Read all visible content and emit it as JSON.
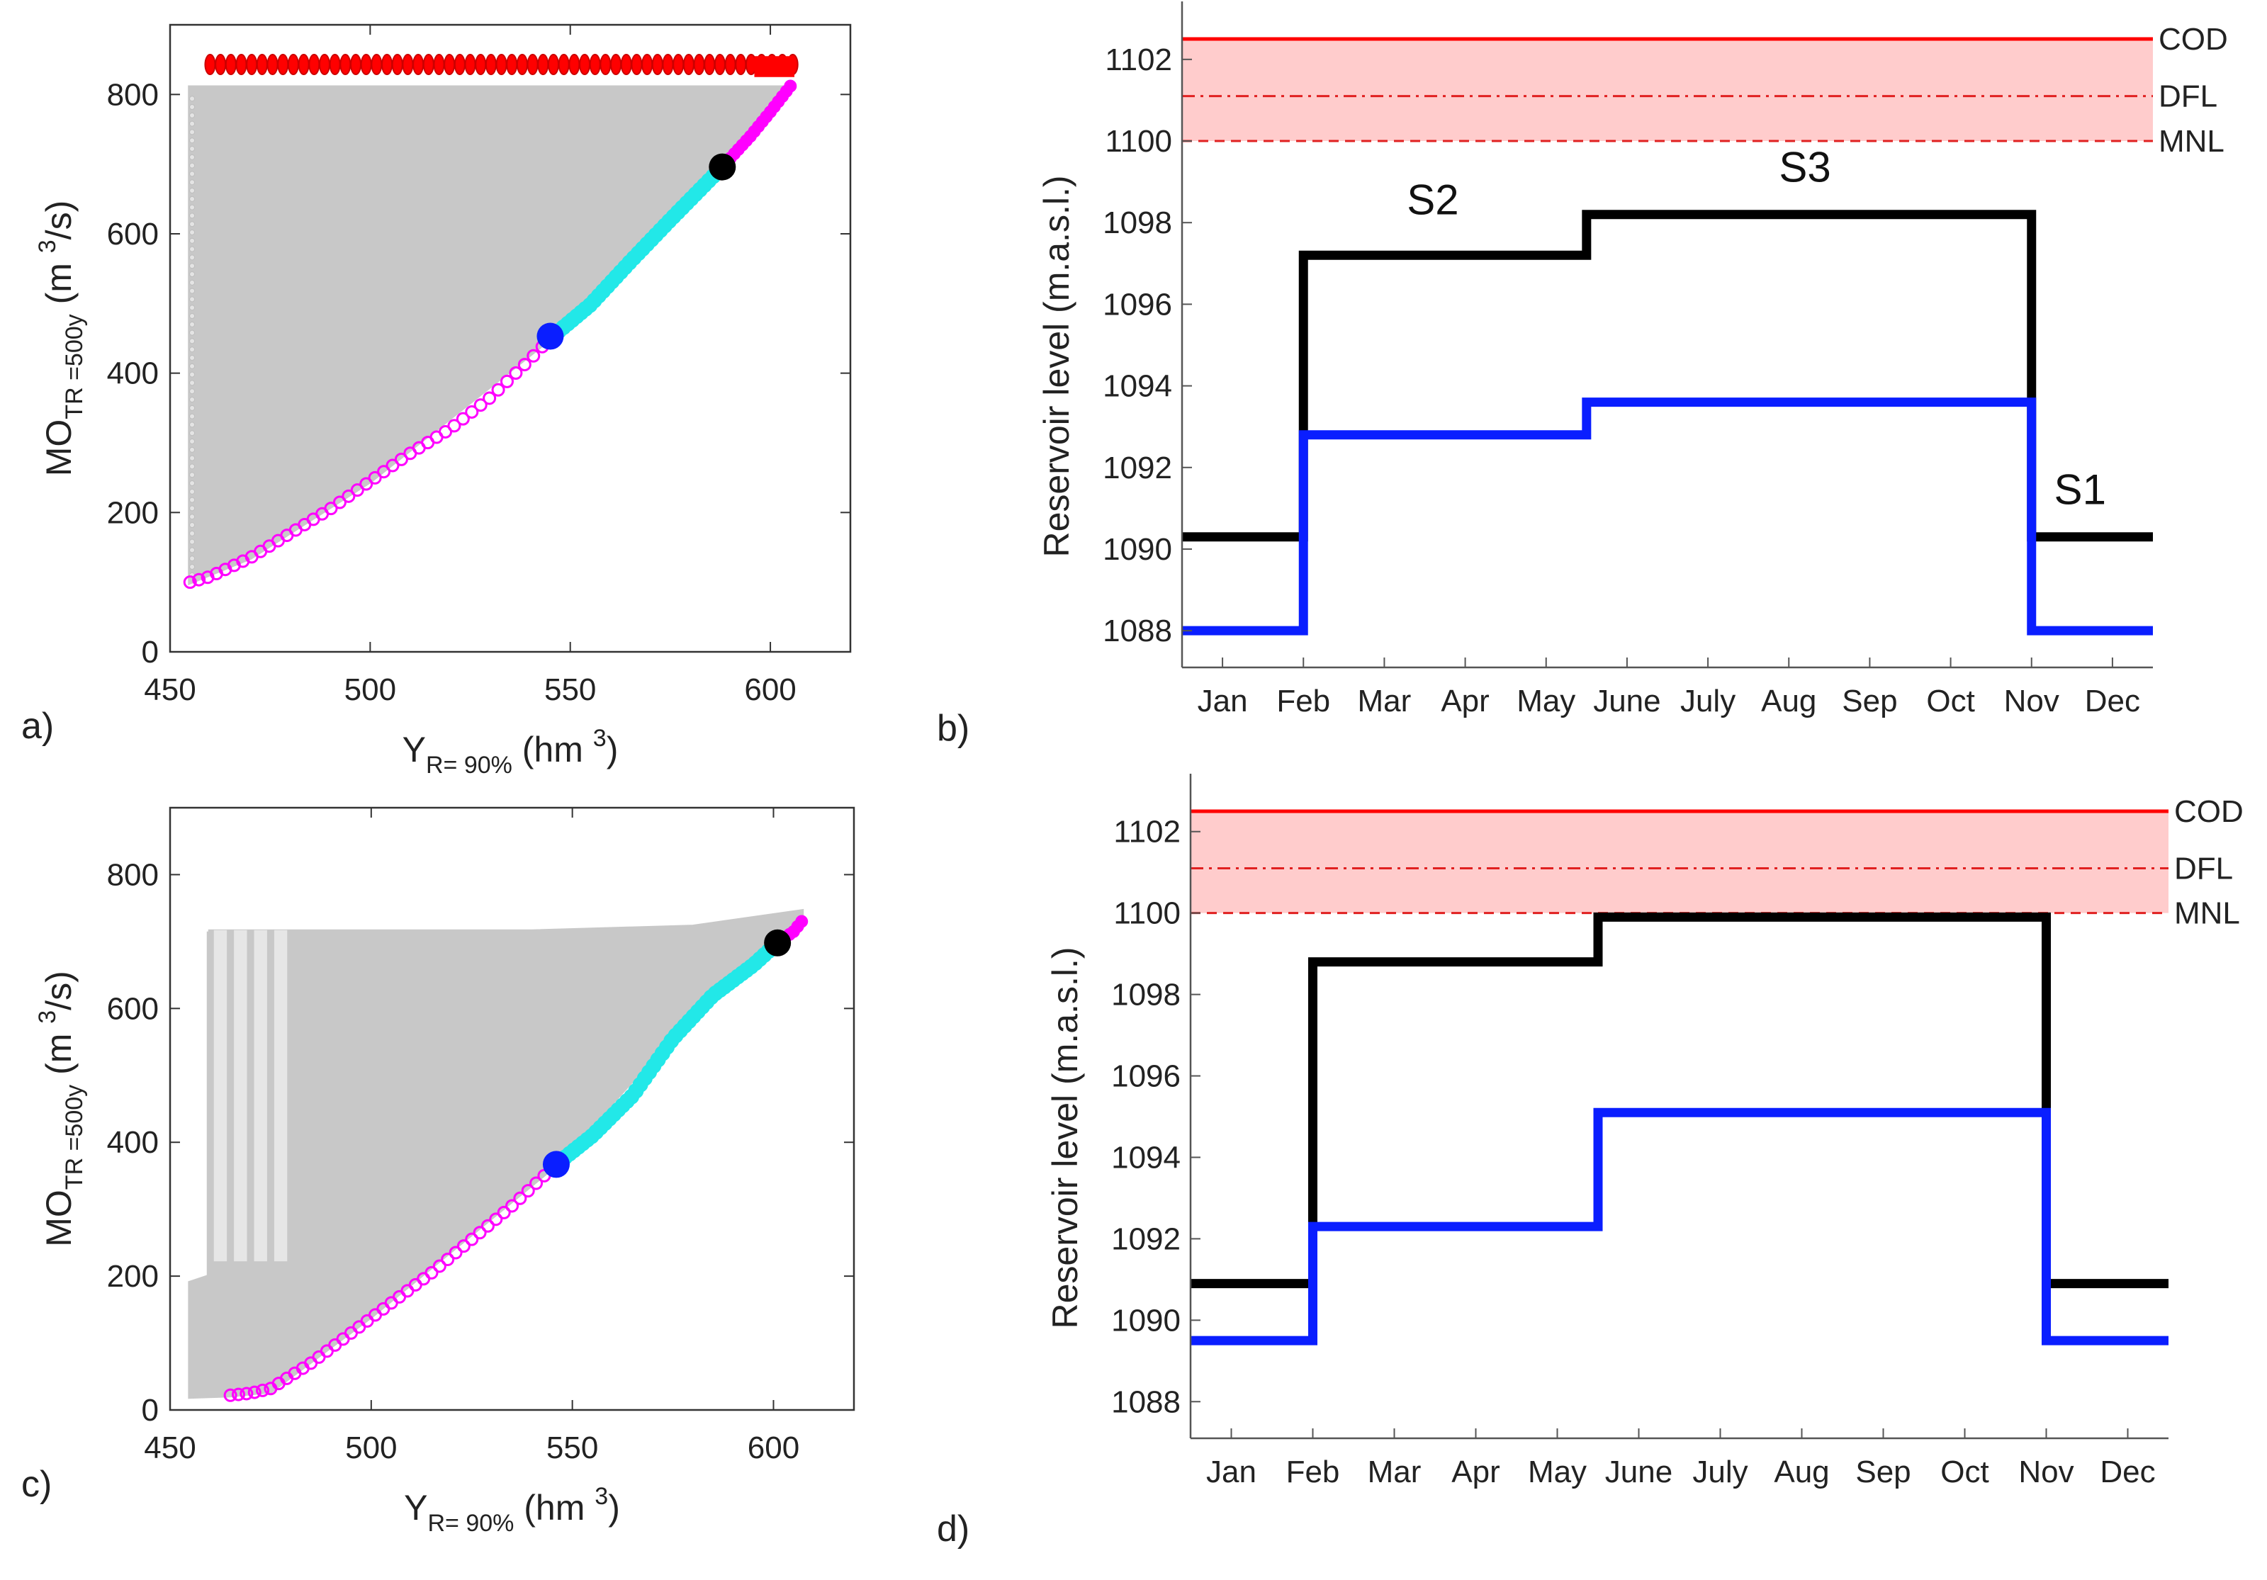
{
  "colors": {
    "grey": "#c8c8c8",
    "magenta": "#ff00ff",
    "cyan": "#22e8e8",
    "red": "#ff0000",
    "blue": "#0a1eff",
    "black": "#000000",
    "band": "#ffcccc",
    "bandLine": "#e02020"
  },
  "chart_data": [
    {
      "panel": "a)",
      "type": "scatter",
      "xlabel_main": "Y",
      "xlabel_sub": "R= 90%",
      "xlabel_unit_pre": "(hm",
      "xlabel_sup": "3",
      "xlabel_unit_post": ")",
      "ylabel_main": "MO",
      "ylabel_sub": "TR =500y",
      "ylabel_unit_pre": "(m",
      "ylabel_sup": "3",
      "ylabel_unit_post": "/s)",
      "xlim": [
        450,
        620
      ],
      "ylim": [
        0,
        900
      ],
      "xticks": [
        450,
        500,
        550,
        600
      ],
      "yticks": [
        0,
        200,
        400,
        600,
        800
      ],
      "grey_region": {
        "x": [
          455,
          605
        ],
        "y_top": 810,
        "lower_curve": [
          [
            455,
            100
          ],
          [
            470,
            135
          ],
          [
            500,
            245
          ],
          [
            545,
            450
          ],
          [
            588,
            696
          ],
          [
            605,
            810
          ]
        ]
      },
      "red_points": {
        "x_range": [
          460,
          606
        ],
        "y": 843
      },
      "magenta_lower": [
        [
          455,
          100
        ],
        [
          460,
          108
        ],
        [
          470,
          135
        ],
        [
          480,
          170
        ],
        [
          490,
          205
        ],
        [
          500,
          245
        ],
        [
          510,
          285
        ],
        [
          520,
          320
        ],
        [
          530,
          365
        ],
        [
          540,
          420
        ],
        [
          545,
          450
        ]
      ],
      "cyan": [
        [
          545,
          450
        ],
        [
          555,
          498
        ],
        [
          565,
          560
        ],
        [
          575,
          620
        ],
        [
          588,
          696
        ]
      ],
      "magenta_upper": [
        [
          588,
          696
        ],
        [
          595,
          740
        ],
        [
          600,
          775
        ],
        [
          605,
          812
        ]
      ],
      "blue_point": [
        545,
        453
      ],
      "black_point": [
        588,
        696
      ]
    },
    {
      "panel": "b)",
      "type": "line",
      "ylabel": "Reservoir level (m.a.s.l.)",
      "ylim": [
        1087.1,
        1102.9
      ],
      "yticks": [
        1088,
        1090,
        1092,
        1094,
        1096,
        1098,
        1100,
        1102
      ],
      "months": [
        "Jan",
        "Feb",
        "Mar",
        "Apr",
        "May",
        "June",
        "July",
        "Aug",
        "Sep",
        "Oct",
        "Nov",
        "Dec"
      ],
      "levels": [
        {
          "name": "COD",
          "value": 1102.5,
          "style": "solid"
        },
        {
          "name": "DFL",
          "value": 1101.1,
          "style": "dashdot"
        },
        {
          "name": "MNL",
          "value": 1100.0,
          "style": "dashed"
        }
      ],
      "series": [
        {
          "name": "black",
          "steps": [
            [
              0,
              1090.3
            ],
            [
              1.5,
              1097.2
            ],
            [
              5,
              1098.2
            ],
            [
              10.5,
              1090.3
            ],
            [
              12,
              1090.3
            ]
          ]
        },
        {
          "name": "blue",
          "steps": [
            [
              0,
              1088.0
            ],
            [
              1.5,
              1092.8
            ],
            [
              5,
              1093.6
            ],
            [
              10.5,
              1088.0
            ],
            [
              12,
              1088.0
            ]
          ]
        }
      ],
      "annotations": [
        {
          "text": "S2",
          "x": 3.1,
          "y": 1098.2
        },
        {
          "text": "S3",
          "x": 7.7,
          "y": 1099.0
        },
        {
          "text": "S1",
          "x": 11.1,
          "y": 1091.1
        }
      ]
    },
    {
      "panel": "c)",
      "type": "scatter",
      "xlabel_main": "Y",
      "xlabel_sub": "R= 90%",
      "xlabel_unit_pre": "(hm",
      "xlabel_sup": "3",
      "xlabel_unit_post": ")",
      "ylabel_main": "MO",
      "ylabel_sub": "TR =500y",
      "ylabel_unit_pre": "(m",
      "ylabel_sup": "3",
      "ylabel_unit_post": "/s)",
      "xlim": [
        450,
        620
      ],
      "ylim": [
        0,
        900
      ],
      "xticks": [
        450,
        500,
        550,
        600
      ],
      "yticks": [
        0,
        200,
        400,
        600,
        800
      ],
      "grey_region": {
        "top_curve": [
          [
            460,
            715
          ],
          [
            540,
            715
          ],
          [
            580,
            722
          ],
          [
            607,
            745
          ]
        ],
        "lower_curve": [
          [
            455,
            20
          ],
          [
            465,
            22
          ],
          [
            475,
            28
          ],
          [
            500,
            140
          ],
          [
            546,
            367
          ],
          [
            575,
            560
          ],
          [
            601,
            698
          ],
          [
            607,
            730
          ]
        ]
      },
      "grey_spikes": [
        [
          460,
          715
        ],
        [
          465,
          715
        ],
        [
          470,
          715
        ],
        [
          475,
          715
        ],
        [
          480,
          715
        ]
      ],
      "magenta_lower": [
        [
          465,
          22
        ],
        [
          470,
          25
        ],
        [
          475,
          32
        ],
        [
          485,
          70
        ],
        [
          495,
          115
        ],
        [
          505,
          160
        ],
        [
          515,
          205
        ],
        [
          525,
          255
        ],
        [
          535,
          305
        ],
        [
          546,
          367
        ]
      ],
      "cyan": [
        [
          546,
          367
        ],
        [
          555,
          410
        ],
        [
          565,
          470
        ],
        [
          575,
          555
        ],
        [
          585,
          620
        ],
        [
          595,
          665
        ],
        [
          601,
          698
        ]
      ],
      "magenta_upper": [
        [
          601,
          698
        ],
        [
          605,
          715
        ],
        [
          607,
          730
        ]
      ],
      "blue_point": [
        546,
        367
      ],
      "black_point": [
        601,
        698
      ]
    },
    {
      "panel": "d)",
      "type": "line",
      "ylabel": "Reservoir level (m.a.s.l.)",
      "ylim": [
        1087.1,
        1102.9
      ],
      "yticks": [
        1088,
        1090,
        1092,
        1094,
        1096,
        1098,
        1100,
        1102
      ],
      "months": [
        "Jan",
        "Feb",
        "Mar",
        "Apr",
        "May",
        "June",
        "July",
        "Aug",
        "Sep",
        "Oct",
        "Nov",
        "Dec"
      ],
      "levels": [
        {
          "name": "COD",
          "value": 1102.5,
          "style": "solid"
        },
        {
          "name": "DFL",
          "value": 1101.1,
          "style": "dashdot"
        },
        {
          "name": "MNL",
          "value": 1100.0,
          "style": "dashed"
        }
      ],
      "series": [
        {
          "name": "black",
          "steps": [
            [
              0,
              1090.9
            ],
            [
              1.5,
              1098.8
            ],
            [
              5,
              1099.9
            ],
            [
              10.5,
              1090.9
            ],
            [
              12,
              1090.9
            ]
          ]
        },
        {
          "name": "blue",
          "steps": [
            [
              0,
              1089.5
            ],
            [
              1.5,
              1092.3
            ],
            [
              5,
              1095.1
            ],
            [
              10.5,
              1089.5
            ],
            [
              12,
              1089.5
            ]
          ]
        }
      ],
      "annotations": []
    }
  ]
}
